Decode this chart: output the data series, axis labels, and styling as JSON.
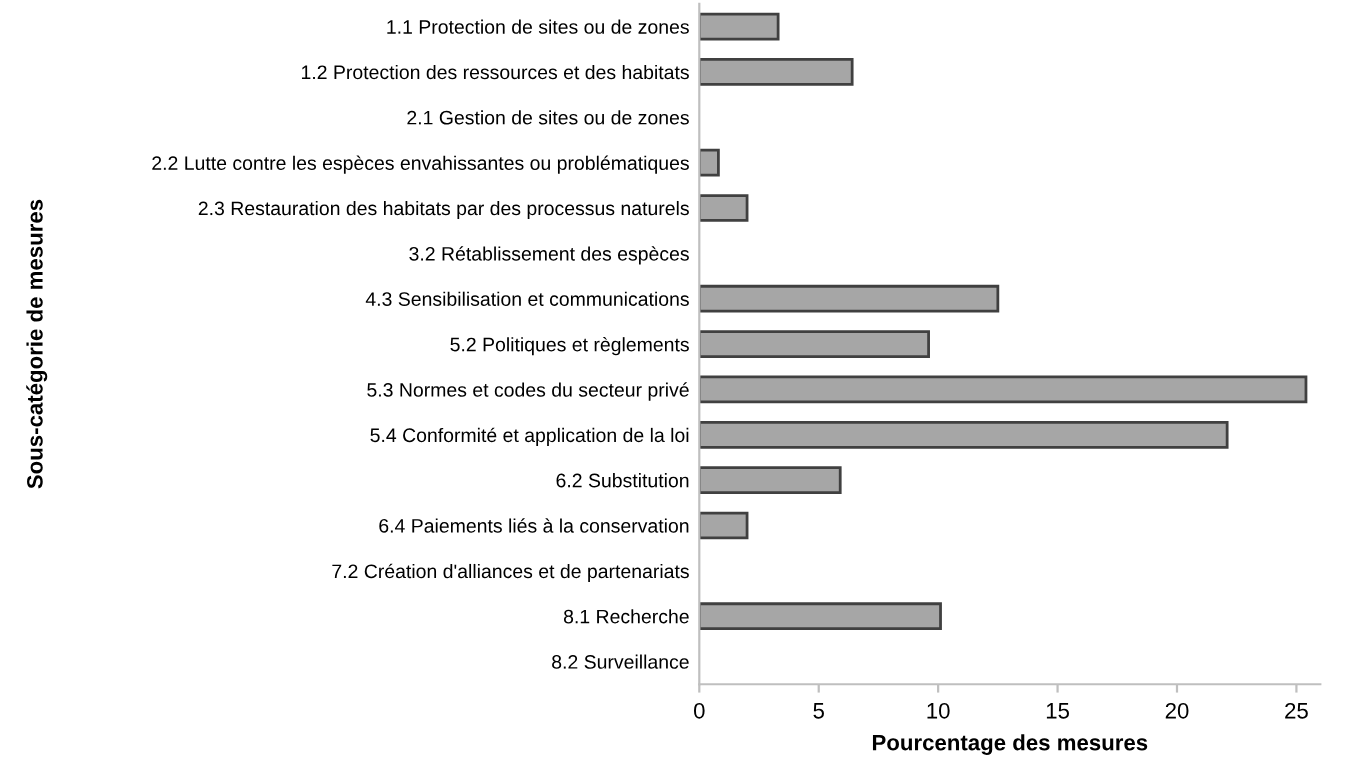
{
  "chart_data": {
    "type": "bar",
    "orientation": "horizontal",
    "categories": [
      "1.1 Protection de sites ou de zones",
      "1.2 Protection des ressources et des habitats",
      "2.1 Gestion de sites ou de zones",
      "2.2 Lutte contre les espèces envahissantes ou problématiques",
      "2.3 Restauration des habitats par des processus naturels",
      "3.2 Rétablissement des espèces",
      "4.3 Sensibilisation et communications",
      "5.2 Politiques et règlements",
      "5.3 Normes et codes du secteur privé",
      "5.4 Conformité et application de la loi",
      "6.2 Substitution",
      "6.4 Paiements liés à la conservation",
      "7.2 Création d'alliances et de partenariats",
      "8.1 Recherche",
      "8.2 Surveillance"
    ],
    "values": [
      3.3,
      6.4,
      0,
      0.8,
      2.0,
      0,
      12.5,
      9.6,
      25.4,
      22.1,
      5.9,
      2.0,
      0,
      10.1,
      0
    ],
    "color": "#a6a6a6",
    "xlabel": "Pourcentage des mesures",
    "ylabel": "Sous-catégorie de mesures",
    "xlim": [
      0,
      26
    ],
    "xticks": [
      0,
      5,
      10,
      15,
      20,
      25
    ],
    "grid": false,
    "legend": false
  }
}
